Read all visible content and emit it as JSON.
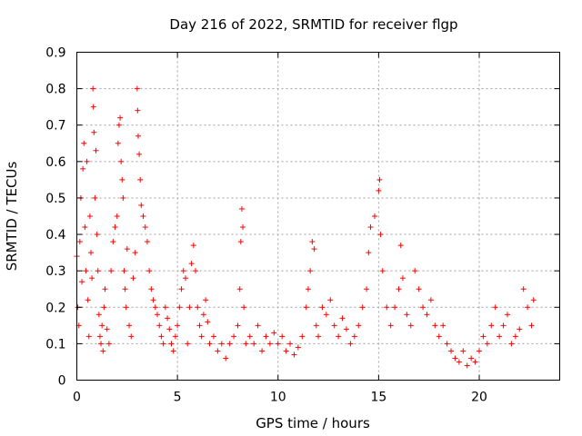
{
  "chart_data": {
    "type": "scatter",
    "title": "Day 216 of 2022, SRMTID for receiver flgp",
    "xlabel": "GPS time / hours",
    "ylabel": "SRMTID / TECUs",
    "xlim": [
      0,
      24
    ],
    "ylim": [
      0,
      0.9
    ],
    "xticks": [
      0,
      5,
      10,
      15,
      20
    ],
    "yticks": [
      0,
      0.1,
      0.2,
      0.3,
      0.4,
      0.5,
      0.6,
      0.7,
      0.8,
      0.9
    ],
    "xtick_labels": [
      "0",
      "5",
      "10",
      "15",
      "20"
    ],
    "ytick_labels": [
      "0",
      "0.1",
      "0.2",
      "0.3",
      "0.4",
      "0.5",
      "0.6",
      "0.7",
      "0.8",
      "0.9"
    ],
    "grid": true,
    "marker": "+",
    "color": "#ff0000",
    "series": [
      {
        "name": "SRMTID",
        "points": [
          [
            0.0,
            0.34
          ],
          [
            0.05,
            0.2
          ],
          [
            0.1,
            0.15
          ],
          [
            0.15,
            0.38
          ],
          [
            0.2,
            0.5
          ],
          [
            0.25,
            0.27
          ],
          [
            0.3,
            0.58
          ],
          [
            0.35,
            0.65
          ],
          [
            0.4,
            0.42
          ],
          [
            0.45,
            0.3
          ],
          [
            0.5,
            0.6
          ],
          [
            0.55,
            0.22
          ],
          [
            0.6,
            0.12
          ],
          [
            0.65,
            0.45
          ],
          [
            0.7,
            0.35
          ],
          [
            0.75,
            0.28
          ],
          [
            0.8,
            0.8
          ],
          [
            0.82,
            0.75
          ],
          [
            0.85,
            0.68
          ],
          [
            0.9,
            0.5
          ],
          [
            0.95,
            0.63
          ],
          [
            1.0,
            0.4
          ],
          [
            1.05,
            0.3
          ],
          [
            1.1,
            0.18
          ],
          [
            1.15,
            0.12
          ],
          [
            1.2,
            0.1
          ],
          [
            1.25,
            0.15
          ],
          [
            1.3,
            0.08
          ],
          [
            1.35,
            0.2
          ],
          [
            1.4,
            0.25
          ],
          [
            1.5,
            0.14
          ],
          [
            1.6,
            0.1
          ],
          [
            1.7,
            0.3
          ],
          [
            1.8,
            0.38
          ],
          [
            1.9,
            0.42
          ],
          [
            2.0,
            0.45
          ],
          [
            2.05,
            0.65
          ],
          [
            2.1,
            0.7
          ],
          [
            2.15,
            0.72
          ],
          [
            2.2,
            0.6
          ],
          [
            2.25,
            0.55
          ],
          [
            2.3,
            0.5
          ],
          [
            2.35,
            0.3
          ],
          [
            2.4,
            0.25
          ],
          [
            2.45,
            0.2
          ],
          [
            2.5,
            0.36
          ],
          [
            2.6,
            0.15
          ],
          [
            2.7,
            0.12
          ],
          [
            2.8,
            0.28
          ],
          [
            2.9,
            0.35
          ],
          [
            3.0,
            0.8
          ],
          [
            3.02,
            0.74
          ],
          [
            3.05,
            0.67
          ],
          [
            3.1,
            0.62
          ],
          [
            3.15,
            0.55
          ],
          [
            3.2,
            0.48
          ],
          [
            3.3,
            0.45
          ],
          [
            3.4,
            0.42
          ],
          [
            3.5,
            0.38
          ],
          [
            3.6,
            0.3
          ],
          [
            3.7,
            0.25
          ],
          [
            3.8,
            0.22
          ],
          [
            3.9,
            0.2
          ],
          [
            4.0,
            0.18
          ],
          [
            4.1,
            0.15
          ],
          [
            4.2,
            0.12
          ],
          [
            4.3,
            0.1
          ],
          [
            4.4,
            0.2
          ],
          [
            4.5,
            0.17
          ],
          [
            4.6,
            0.14
          ],
          [
            4.7,
            0.1
          ],
          [
            4.8,
            0.08
          ],
          [
            4.9,
            0.12
          ],
          [
            5.0,
            0.15
          ],
          [
            5.1,
            0.2
          ],
          [
            5.2,
            0.25
          ],
          [
            5.3,
            0.3
          ],
          [
            5.4,
            0.28
          ],
          [
            5.5,
            0.1
          ],
          [
            5.6,
            0.2
          ],
          [
            5.7,
            0.32
          ],
          [
            5.8,
            0.37
          ],
          [
            5.9,
            0.3
          ],
          [
            6.0,
            0.2
          ],
          [
            6.1,
            0.15
          ],
          [
            6.2,
            0.12
          ],
          [
            6.3,
            0.18
          ],
          [
            6.4,
            0.22
          ],
          [
            6.5,
            0.16
          ],
          [
            6.6,
            0.1
          ],
          [
            6.8,
            0.12
          ],
          [
            7.0,
            0.08
          ],
          [
            7.2,
            0.1
          ],
          [
            7.4,
            0.06
          ],
          [
            7.6,
            0.1
          ],
          [
            7.8,
            0.12
          ],
          [
            8.0,
            0.15
          ],
          [
            8.1,
            0.25
          ],
          [
            8.15,
            0.38
          ],
          [
            8.2,
            0.47
          ],
          [
            8.25,
            0.42
          ],
          [
            8.3,
            0.2
          ],
          [
            8.4,
            0.1
          ],
          [
            8.6,
            0.12
          ],
          [
            8.8,
            0.1
          ],
          [
            9.0,
            0.15
          ],
          [
            9.2,
            0.08
          ],
          [
            9.4,
            0.12
          ],
          [
            9.6,
            0.1
          ],
          [
            9.8,
            0.13
          ],
          [
            10.0,
            0.1
          ],
          [
            10.2,
            0.12
          ],
          [
            10.4,
            0.08
          ],
          [
            10.6,
            0.1
          ],
          [
            10.8,
            0.07
          ],
          [
            11.0,
            0.09
          ],
          [
            11.2,
            0.12
          ],
          [
            11.4,
            0.2
          ],
          [
            11.5,
            0.25
          ],
          [
            11.6,
            0.3
          ],
          [
            11.7,
            0.38
          ],
          [
            11.8,
            0.36
          ],
          [
            11.9,
            0.15
          ],
          [
            12.0,
            0.12
          ],
          [
            12.2,
            0.2
          ],
          [
            12.4,
            0.18
          ],
          [
            12.6,
            0.22
          ],
          [
            12.8,
            0.15
          ],
          [
            13.0,
            0.12
          ],
          [
            13.2,
            0.17
          ],
          [
            13.4,
            0.14
          ],
          [
            13.6,
            0.1
          ],
          [
            13.8,
            0.12
          ],
          [
            14.0,
            0.15
          ],
          [
            14.2,
            0.2
          ],
          [
            14.4,
            0.25
          ],
          [
            14.5,
            0.35
          ],
          [
            14.6,
            0.42
          ],
          [
            14.8,
            0.45
          ],
          [
            15.0,
            0.52
          ],
          [
            15.05,
            0.55
          ],
          [
            15.1,
            0.4
          ],
          [
            15.2,
            0.3
          ],
          [
            15.4,
            0.2
          ],
          [
            15.6,
            0.15
          ],
          [
            15.8,
            0.2
          ],
          [
            16.0,
            0.25
          ],
          [
            16.1,
            0.37
          ],
          [
            16.2,
            0.28
          ],
          [
            16.4,
            0.18
          ],
          [
            16.6,
            0.15
          ],
          [
            16.8,
            0.3
          ],
          [
            17.0,
            0.25
          ],
          [
            17.2,
            0.2
          ],
          [
            17.4,
            0.18
          ],
          [
            17.6,
            0.22
          ],
          [
            17.8,
            0.15
          ],
          [
            18.0,
            0.12
          ],
          [
            18.2,
            0.15
          ],
          [
            18.4,
            0.1
          ],
          [
            18.6,
            0.08
          ],
          [
            18.8,
            0.06
          ],
          [
            19.0,
            0.05
          ],
          [
            19.2,
            0.08
          ],
          [
            19.4,
            0.04
          ],
          [
            19.6,
            0.06
          ],
          [
            19.8,
            0.05
          ],
          [
            20.0,
            0.08
          ],
          [
            20.2,
            0.12
          ],
          [
            20.4,
            0.1
          ],
          [
            20.6,
            0.15
          ],
          [
            20.8,
            0.2
          ],
          [
            21.0,
            0.12
          ],
          [
            21.2,
            0.15
          ],
          [
            21.4,
            0.18
          ],
          [
            21.6,
            0.1
          ],
          [
            21.8,
            0.12
          ],
          [
            22.0,
            0.14
          ],
          [
            22.2,
            0.25
          ],
          [
            22.4,
            0.2
          ],
          [
            22.6,
            0.15
          ],
          [
            22.7,
            0.22
          ]
        ]
      }
    ]
  }
}
